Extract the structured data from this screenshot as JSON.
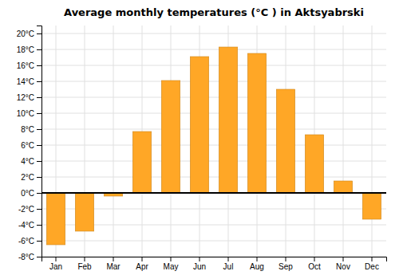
{
  "chart_data": {
    "type": "bar",
    "title": "Average monthly temperatures (°C ) in Aktsyabrski",
    "categories": [
      "Jan",
      "Feb",
      "Mar",
      "Apr",
      "May",
      "Jun",
      "Jul",
      "Aug",
      "Sep",
      "Oct",
      "Nov",
      "Dec"
    ],
    "values": [
      -6.5,
      -4.8,
      -0.4,
      7.7,
      14.1,
      17.1,
      18.3,
      17.5,
      13.0,
      7.3,
      1.5,
      -3.3
    ],
    "color": "#FFA726",
    "ylim": [
      -8,
      21
    ],
    "yticks": [
      {
        "value": -8,
        "label": "-8°C"
      },
      {
        "value": -6,
        "label": "-6°C"
      },
      {
        "value": -4,
        "label": "-4°C"
      },
      {
        "value": -2,
        "label": "-2°C"
      },
      {
        "value": 0,
        "label": "0°C"
      },
      {
        "value": 2,
        "label": "2°C"
      },
      {
        "value": 4,
        "label": "4°C"
      },
      {
        "value": 6,
        "label": "6°C"
      },
      {
        "value": 8,
        "label": "8°C"
      },
      {
        "value": 10,
        "label": "10°C"
      },
      {
        "value": 12,
        "label": "12°C"
      },
      {
        "value": 14,
        "label": "14°C"
      },
      {
        "value": 16,
        "label": "16°C"
      },
      {
        "value": 18,
        "label": "18°C"
      },
      {
        "value": 20,
        "label": "20°C"
      }
    ],
    "grid": true
  }
}
